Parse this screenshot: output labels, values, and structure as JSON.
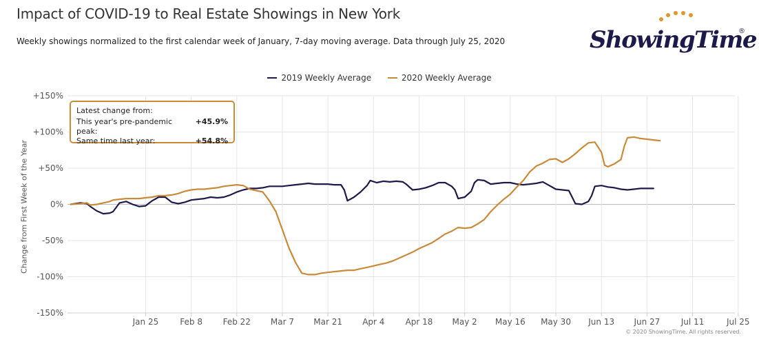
{
  "title": "Impact of COVID-19 to Real Estate Showings in New York",
  "subtitle": "Weekly showings normalized to the first calendar week of January, 7-day moving average. Data through July 25, 2020",
  "logo": {
    "text": "ShowingTime",
    "reg": "®"
  },
  "legend": [
    {
      "label": "2019 Weekly Average",
      "color": "#1c1a4a"
    },
    {
      "label": "2020 Weekly Average",
      "color": "#c98a3a"
    }
  ],
  "callout": {
    "heading": "Latest change from:",
    "rows": [
      {
        "label": "This year's pre-pandemic peak:",
        "value": "+45.9%"
      },
      {
        "label": "Same time last year:",
        "value": "+54.8%"
      }
    ]
  },
  "copyright": "© 2020 ShowingTime. All rights reserved.",
  "chart_data": {
    "type": "line",
    "title": "Impact of COVID-19 to Real Estate Showings in New York",
    "xlabel": "",
    "ylabel": "Change from First Week of the Year",
    "x_range": [
      0,
      205
    ],
    "x_ticks": [
      {
        "day": 24,
        "label": "Jan 25"
      },
      {
        "day": 38,
        "label": "Feb 8"
      },
      {
        "day": 52,
        "label": "Feb 22"
      },
      {
        "day": 66,
        "label": "Mar 7"
      },
      {
        "day": 80,
        "label": "Mar 21"
      },
      {
        "day": 94,
        "label": "Apr 4"
      },
      {
        "day": 108,
        "label": "Apr 18"
      },
      {
        "day": 122,
        "label": "May 2"
      },
      {
        "day": 136,
        "label": "May 16"
      },
      {
        "day": 150,
        "label": "May 30"
      },
      {
        "day": 164,
        "label": "Jun 13"
      },
      {
        "day": 178,
        "label": "Jun 27"
      },
      {
        "day": 192,
        "label": "Jul 11"
      },
      {
        "day": 206,
        "label": "Jul 25"
      }
    ],
    "ylim": [
      -150,
      150
    ],
    "y_ticks": [
      {
        "value": 150,
        "label": "+150%"
      },
      {
        "value": 100,
        "label": "+100%"
      },
      {
        "value": 50,
        "label": "+50%"
      },
      {
        "value": 0,
        "label": "0%"
      },
      {
        "value": -50,
        "label": "-50%"
      },
      {
        "value": -100,
        "label": "-100%"
      },
      {
        "value": -150,
        "label": "-150%"
      }
    ],
    "series": [
      {
        "name": "2019 Weekly Average",
        "color": "#1c1a4a",
        "points": [
          [
            1,
            0
          ],
          [
            4,
            2
          ],
          [
            6,
            1
          ],
          [
            7,
            -3
          ],
          [
            9,
            -9
          ],
          [
            11,
            -13
          ],
          [
            13,
            -12
          ],
          [
            14,
            -10
          ],
          [
            16,
            2
          ],
          [
            18,
            4
          ],
          [
            20,
            0
          ],
          [
            22,
            -3
          ],
          [
            24,
            -2
          ],
          [
            26,
            5
          ],
          [
            28,
            10
          ],
          [
            30,
            10
          ],
          [
            32,
            3
          ],
          [
            34,
            1
          ],
          [
            36,
            3
          ],
          [
            38,
            6
          ],
          [
            40,
            7
          ],
          [
            42,
            8
          ],
          [
            44,
            10
          ],
          [
            46,
            9
          ],
          [
            48,
            10
          ],
          [
            50,
            13
          ],
          [
            52,
            17
          ],
          [
            54,
            20
          ],
          [
            56,
            22
          ],
          [
            58,
            22
          ],
          [
            60,
            23
          ],
          [
            62,
            25
          ],
          [
            64,
            25
          ],
          [
            66,
            25
          ],
          [
            68,
            26
          ],
          [
            70,
            27
          ],
          [
            72,
            28
          ],
          [
            74,
            29
          ],
          [
            76,
            28
          ],
          [
            78,
            28
          ],
          [
            80,
            28
          ],
          [
            82,
            27
          ],
          [
            84,
            27
          ],
          [
            85,
            20
          ],
          [
            86,
            5
          ],
          [
            88,
            10
          ],
          [
            90,
            17
          ],
          [
            92,
            26
          ],
          [
            93,
            33
          ],
          [
            95,
            30
          ],
          [
            97,
            32
          ],
          [
            99,
            31
          ],
          [
            101,
            32
          ],
          [
            103,
            31
          ],
          [
            104,
            28
          ],
          [
            106,
            20
          ],
          [
            108,
            21
          ],
          [
            110,
            23
          ],
          [
            112,
            26
          ],
          [
            114,
            30
          ],
          [
            116,
            30
          ],
          [
            118,
            25
          ],
          [
            119,
            20
          ],
          [
            120,
            8
          ],
          [
            122,
            10
          ],
          [
            124,
            18
          ],
          [
            125,
            30
          ],
          [
            126,
            34
          ],
          [
            128,
            33
          ],
          [
            130,
            28
          ],
          [
            132,
            29
          ],
          [
            134,
            30
          ],
          [
            136,
            30
          ],
          [
            138,
            28
          ],
          [
            140,
            27
          ],
          [
            142,
            28
          ],
          [
            144,
            29
          ],
          [
            146,
            31
          ],
          [
            148,
            26
          ],
          [
            150,
            21
          ],
          [
            152,
            20
          ],
          [
            154,
            19
          ],
          [
            155,
            10
          ],
          [
            156,
            1
          ],
          [
            158,
            0
          ],
          [
            160,
            4
          ],
          [
            161,
            12
          ],
          [
            162,
            25
          ],
          [
            164,
            26
          ],
          [
            166,
            24
          ],
          [
            168,
            23
          ],
          [
            170,
            21
          ],
          [
            172,
            20
          ],
          [
            174,
            21
          ],
          [
            176,
            22
          ],
          [
            178,
            22
          ],
          [
            180,
            22
          ]
        ]
      },
      {
        "name": "2020 Weekly Average",
        "color": "#c98a3a",
        "points": [
          [
            1,
            0
          ],
          [
            4,
            1
          ],
          [
            6,
            2
          ],
          [
            7,
            -1
          ],
          [
            9,
            0
          ],
          [
            11,
            2
          ],
          [
            13,
            4
          ],
          [
            14,
            6
          ],
          [
            16,
            7
          ],
          [
            18,
            8
          ],
          [
            20,
            8
          ],
          [
            22,
            8
          ],
          [
            24,
            9
          ],
          [
            26,
            10
          ],
          [
            28,
            12
          ],
          [
            30,
            12
          ],
          [
            32,
            13
          ],
          [
            34,
            15
          ],
          [
            36,
            18
          ],
          [
            38,
            20
          ],
          [
            40,
            21
          ],
          [
            42,
            21
          ],
          [
            44,
            22
          ],
          [
            46,
            23
          ],
          [
            48,
            25
          ],
          [
            50,
            26
          ],
          [
            52,
            27
          ],
          [
            54,
            26
          ],
          [
            56,
            21
          ],
          [
            58,
            19
          ],
          [
            60,
            17
          ],
          [
            62,
            5
          ],
          [
            64,
            -10
          ],
          [
            66,
            -35
          ],
          [
            68,
            -60
          ],
          [
            70,
            -80
          ],
          [
            72,
            -95
          ],
          [
            74,
            -97
          ],
          [
            76,
            -97
          ],
          [
            78,
            -95
          ],
          [
            80,
            -94
          ],
          [
            82,
            -93
          ],
          [
            84,
            -92
          ],
          [
            86,
            -91
          ],
          [
            88,
            -91
          ],
          [
            90,
            -89
          ],
          [
            92,
            -87
          ],
          [
            94,
            -85
          ],
          [
            96,
            -83
          ],
          [
            98,
            -81
          ],
          [
            100,
            -78
          ],
          [
            102,
            -74
          ],
          [
            104,
            -70
          ],
          [
            106,
            -66
          ],
          [
            108,
            -61
          ],
          [
            110,
            -57
          ],
          [
            112,
            -53
          ],
          [
            114,
            -47
          ],
          [
            116,
            -41
          ],
          [
            118,
            -37
          ],
          [
            120,
            -32
          ],
          [
            122,
            -33
          ],
          [
            124,
            -32
          ],
          [
            126,
            -27
          ],
          [
            128,
            -21
          ],
          [
            130,
            -10
          ],
          [
            132,
            -1
          ],
          [
            134,
            7
          ],
          [
            136,
            14
          ],
          [
            138,
            24
          ],
          [
            140,
            33
          ],
          [
            142,
            45
          ],
          [
            144,
            53
          ],
          [
            146,
            57
          ],
          [
            148,
            62
          ],
          [
            150,
            63
          ],
          [
            152,
            58
          ],
          [
            154,
            63
          ],
          [
            156,
            70
          ],
          [
            158,
            78
          ],
          [
            160,
            85
          ],
          [
            162,
            86
          ],
          [
            164,
            72
          ],
          [
            165,
            54
          ],
          [
            166,
            52
          ],
          [
            168,
            56
          ],
          [
            170,
            62
          ],
          [
            171,
            80
          ],
          [
            172,
            92
          ],
          [
            174,
            93
          ],
          [
            176,
            91
          ],
          [
            178,
            90
          ],
          [
            180,
            89
          ],
          [
            182,
            88
          ]
        ]
      }
    ]
  }
}
